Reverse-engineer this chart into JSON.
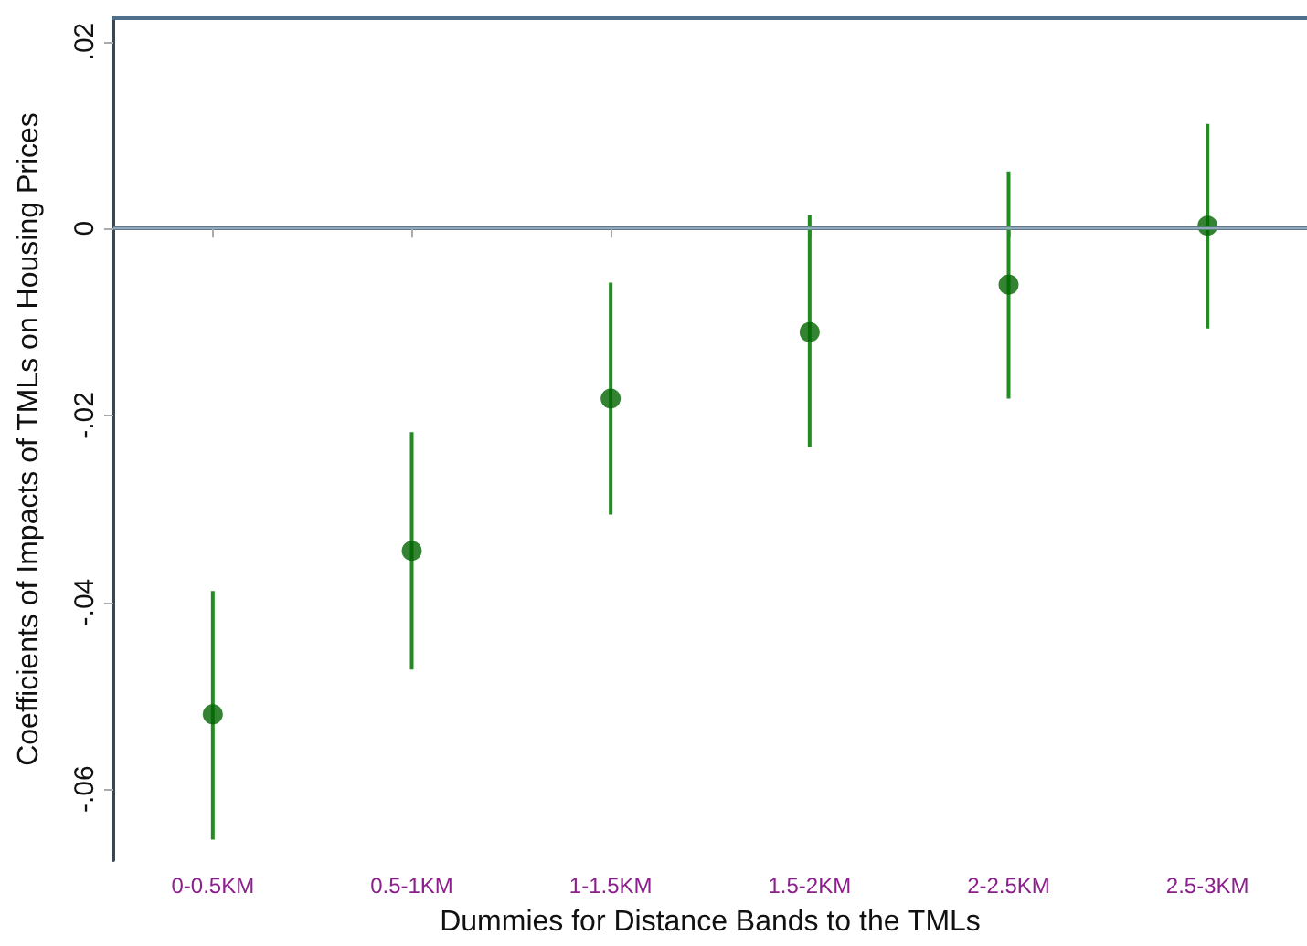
{
  "chart_data": {
    "type": "scatter",
    "xlabel": "Dummies for Distance Bands to the TMLs",
    "ylabel": "Coefficients of Impacts of TMLs on Housing Prices",
    "categories": [
      "0-0.5KM",
      "0.5-1KM",
      "1-1.5KM",
      "1.5-2KM",
      "2-2.5KM",
      "2.5-3KM"
    ],
    "series": [
      {
        "color": "#006400",
        "values": [
          -0.052,
          -0.0345,
          -0.0182,
          -0.0111,
          -0.006,
          0.0003
        ],
        "errors": [
          [
            -0.0654,
            -0.0388
          ],
          [
            -0.0472,
            -0.0218
          ],
          [
            -0.0306,
            -0.0058
          ],
          [
            -0.0234,
            0.0014
          ],
          [
            -0.0182,
            0.0061
          ],
          [
            -0.0107,
            0.0112
          ]
        ]
      }
    ],
    "ylim": [
      -0.0676,
      0.0225
    ],
    "yticks": [
      {
        "value": -0.06,
        "label": "-.06"
      },
      {
        "value": -0.04,
        "label": "-.04"
      },
      {
        "value": -0.02,
        "label": "-.02"
      },
      {
        "value": 0,
        "label": "0"
      },
      {
        "value": 0.02,
        "label": ".02"
      }
    ],
    "ref_lines": [
      {
        "axis": "y",
        "value": 0,
        "color": "#8fa8bd"
      }
    ],
    "marker": "circle"
  }
}
